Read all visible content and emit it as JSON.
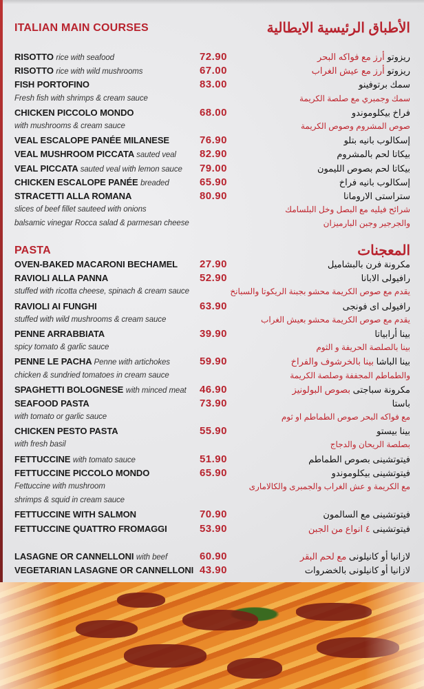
{
  "main_courses": {
    "title": "ITALIAN MAIN COURSES",
    "title_ar": "الأطباق الرئيسية الايطالية",
    "rows": [
      {
        "type": "item",
        "en": "RISOTTO",
        "en_desc": "rice with seafood",
        "price": "72.90",
        "ar": "ريزوتو",
        "ar_desc": "أرز مع فواكه البحر"
      },
      {
        "type": "item",
        "en": "RISOTTO",
        "en_desc": "rice with wild mushrooms",
        "price": "67.00",
        "ar": "ريزوتو",
        "ar_desc": "أرز مع عيش الغراب"
      },
      {
        "type": "item",
        "en": "FISH PORTOFINO",
        "en_desc": "",
        "price": "83.00",
        "ar": "سمك برتوفينو",
        "ar_desc": ""
      },
      {
        "type": "desc",
        "en": "Fresh fish with shrimps & cream sauce",
        "ar": "سمك وجمبري مع صلصة الكريمة"
      },
      {
        "type": "item",
        "en": "CHICKEN PICCOLO MONDO",
        "en_desc": "",
        "price": "68.00",
        "ar": "فراخ بيكلوموندو",
        "ar_desc": ""
      },
      {
        "type": "desc",
        "en": "with mushrooms & cream sauce",
        "ar": "صوص المشروم وصوص الكريمة"
      },
      {
        "type": "item",
        "en": "VEAL ESCALOPE PANÉE MILANESE",
        "en_desc": "",
        "price": "76.90",
        "ar": "إسكالوب بانيه بتلو",
        "ar_desc": ""
      },
      {
        "type": "item",
        "en": "VEAL MUSHROOM PICCATA",
        "en_desc": "sauted veal",
        "price": "82.90",
        "ar": "بيكاتا لحم بالمشروم",
        "ar_desc": ""
      },
      {
        "type": "item",
        "en": "VEAL PICCATA",
        "en_desc": "sauted veal with lemon sauce",
        "price": "79.00",
        "ar": "بيكاتا لحم بصوص الليمون",
        "ar_desc": ""
      },
      {
        "type": "item",
        "en": "CHICKEN ESCALOPE PANÉE",
        "en_desc": "breaded",
        "price": "65.90",
        "ar": "إسكالوب بانيه فراخ",
        "ar_desc": ""
      },
      {
        "type": "item",
        "en": "STRACETTI ALLA ROMANA",
        "en_desc": "",
        "price": "80.90",
        "ar": "ستراستى الارومانا",
        "ar_desc": ""
      },
      {
        "type": "desc",
        "en": "slices of beef fillet sauteed with onions",
        "ar": "شرائح فيليه مع البصل وخل البلسامك"
      },
      {
        "type": "desc",
        "en": "balsamic vinegar Rocca salad & parmesan cheese",
        "ar": "والجرجير وجبن البارميزان"
      }
    ]
  },
  "pasta": {
    "title": "PASTA",
    "title_ar": "المعجنات",
    "rows": [
      {
        "type": "item",
        "en": "OVEN-BAKED MACARONI BECHAMEL",
        "en_desc": "",
        "price": "27.90",
        "ar": "مكرونة فرن بالبشاميل",
        "ar_desc": ""
      },
      {
        "type": "item",
        "en": "RAVIOLI ALLA PANNA",
        "en_desc": "",
        "price": "52.90",
        "ar": "رافيولى الابانا",
        "ar_desc": ""
      },
      {
        "type": "desc",
        "en": "stuffed with ricotta cheese, spinach & cream sauce",
        "ar": "يقدم مع صوص الكريمة محشو بجبنة الريكوتا والسبانخ"
      },
      {
        "type": "item",
        "en": "RAVIOLI AI FUNGHI",
        "en_desc": "",
        "price": "63.90",
        "ar": "رافيولى اى فونجى",
        "ar_desc": ""
      },
      {
        "type": "desc",
        "en": "stuffed with wild mushrooms & cream sauce",
        "ar": "يقدم مع صوص الكريمة محشو بعيش الغراب"
      },
      {
        "type": "item",
        "en": "PENNE ARRABBIATA",
        "en_desc": "",
        "price": "39.90",
        "ar": "بينا أرابياتا",
        "ar_desc": ""
      },
      {
        "type": "desc",
        "en": "spicy tomato & garlic sauce",
        "ar": "بينا بالصلصة الحريفة و الثوم"
      },
      {
        "type": "item",
        "en": "PENNE LE PACHA",
        "en_desc": "Penne with artichokes",
        "price": "59.90",
        "ar": "بينا الباشا",
        "ar_desc": "بينا بالخرشوف والفراخ"
      },
      {
        "type": "desc",
        "en": "chicken & sundried tomatoes in cream sauce",
        "ar": "والطماطم المجففة وصلصة الكريمة"
      },
      {
        "type": "item",
        "en": "SPAGHETTI BOLOGNESE",
        "en_desc": "with minced meat",
        "price": "46.90",
        "ar": "مكرونة سباجتى",
        "ar_desc": "بصوص البولونيز"
      },
      {
        "type": "item",
        "en": "SEAFOOD PASTA",
        "en_desc": "",
        "price": "73.90",
        "ar": "باستا",
        "ar_desc": ""
      },
      {
        "type": "desc",
        "en": "with tomato or garlic sauce",
        "ar": "مع فواكه البحر  صوص الطماطم او ثوم"
      },
      {
        "type": "item",
        "en": "CHICKEN PESTO PASTA",
        "en_desc": "",
        "price": "55.90",
        "ar": "بينا بيستو",
        "ar_desc": ""
      },
      {
        "type": "desc",
        "en": "with fresh basil",
        "ar": "بصلصة الريحان والدجاج"
      },
      {
        "type": "item",
        "en": "FETTUCCINE",
        "en_desc": "with tomato sauce",
        "price": "51.90",
        "ar": "فيتوتشينى بصوص الطماطم",
        "ar_desc": ""
      },
      {
        "type": "item",
        "en": "FETTUCCINE PICCOLO MONDO",
        "en_desc": "",
        "price": "65.90",
        "ar": "فيتوتشينى بيكلوموندو",
        "ar_desc": ""
      },
      {
        "type": "desc",
        "en": "Fettuccine with mushroom",
        "ar": "مع الكريمة و عش الغراب والجمبرى والكالامارى"
      },
      {
        "type": "desc",
        "en": " shrimps & squid in cream sauce",
        "ar": ""
      },
      {
        "type": "item",
        "en": "FETTUCCINE WITH SALMON",
        "en_desc": "",
        "price": "70.90",
        "ar": "فيتوتشينى مع السالمون",
        "ar_desc": ""
      },
      {
        "type": "item",
        "en": "FETTUCCINE QUATTRO FROMAGGI",
        "en_desc": "",
        "price": "53.90",
        "ar": "فيتوتشينى",
        "ar_desc": "٤ انواع من الجبن"
      },
      {
        "type": "spacer"
      },
      {
        "type": "item",
        "en": "LASAGNE OR CANNELLONI",
        "en_desc": "with beef",
        "price": "60.90",
        "ar": "لازانيا أو كانيلونى",
        "ar_desc": "مع لحم البقر"
      },
      {
        "type": "item",
        "en": "VEGETARIAN LASAGNE OR CANNELLONI",
        "en_desc": "",
        "price": "43.90",
        "ar": "لازانيا أو كانيلونى بالخضروات",
        "ar_desc": ""
      }
    ]
  },
  "colors": {
    "accent": "#b8232e",
    "background": "#e8e8ea",
    "text": "#1a1a1a"
  }
}
